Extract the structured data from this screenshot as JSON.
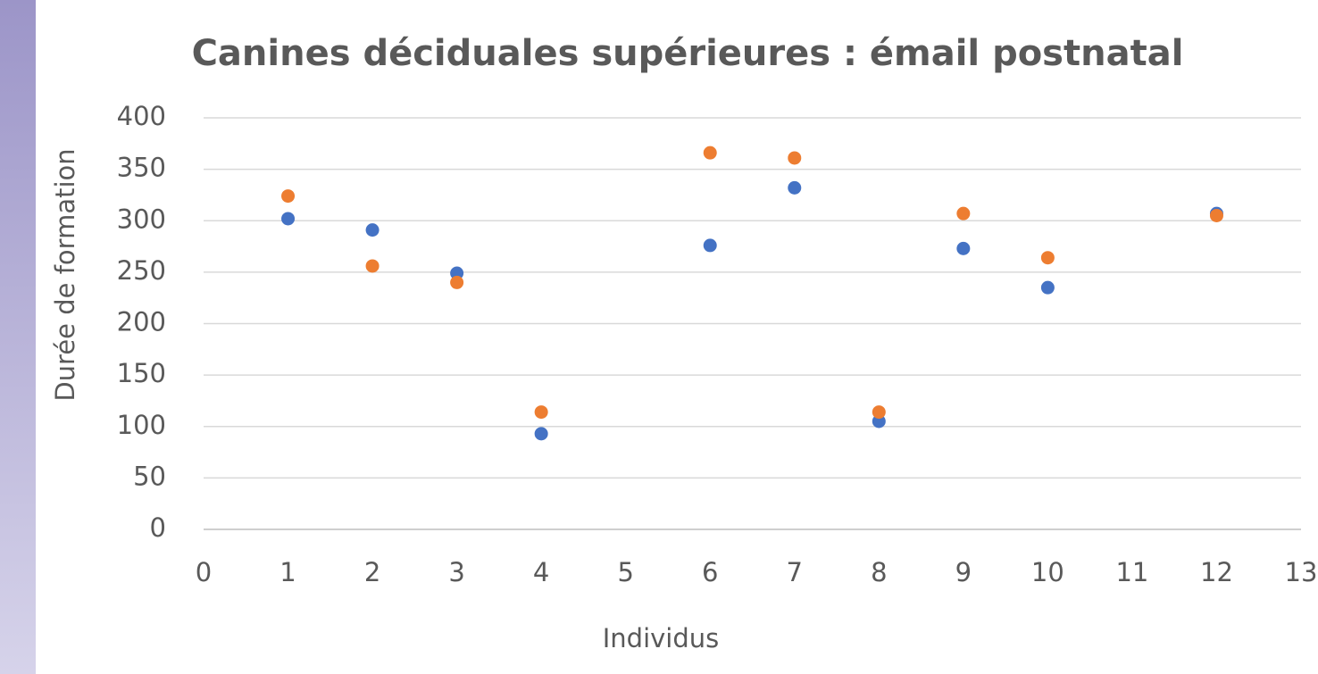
{
  "chart_data": {
    "type": "scatter",
    "title": "Canines déciduales supérieures : émail postnatal",
    "x_label": "Individus",
    "y_label": "Durée de formation",
    "x": [
      1,
      2,
      3,
      4,
      6,
      7,
      8,
      9,
      10,
      12
    ],
    "series": [
      {
        "color": "#4472c4",
        "values": [
          302,
          291,
          249,
          93,
          276,
          332,
          105,
          273,
          235,
          307
        ]
      },
      {
        "color": "#ed7d31",
        "values": [
          324,
          256,
          240,
          114,
          366,
          361,
          114,
          307,
          264,
          305
        ]
      }
    ],
    "xlim": [
      0,
      13
    ],
    "xticks": [
      0,
      1,
      2,
      3,
      4,
      5,
      6,
      7,
      8,
      9,
      10,
      11,
      12,
      13
    ],
    "ylim": [
      0,
      400
    ],
    "yticks": [
      0,
      50,
      100,
      150,
      200,
      250,
      300,
      350,
      400
    ],
    "grid": true
  }
}
